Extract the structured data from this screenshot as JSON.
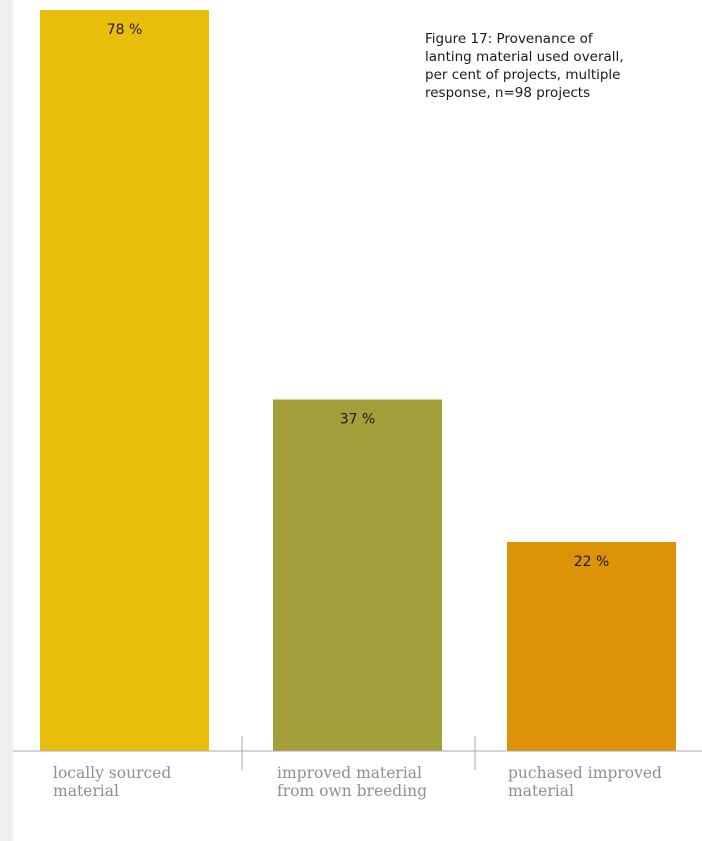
{
  "figure": {
    "title_lines": [
      "Figure 17: Provenance of",
      "lanting material used overall,",
      "per cent of projects, multiple",
      "response, n=98 projects"
    ]
  },
  "chart_data": {
    "type": "bar",
    "title": "Figure 17: Provenance of lanting material used overall, per cent of projects, multiple response, n=98 projects",
    "categories": [
      [
        "locally sourced",
        "material"
      ],
      [
        "improved material",
        "from own breeding"
      ],
      [
        "puchased improved",
        "material"
      ]
    ],
    "values": [
      78,
      37,
      22
    ],
    "value_labels": [
      "78 %",
      "37 %",
      "22 %"
    ],
    "colors": [
      "#e9be0b",
      "#a39f3a",
      "#dc9307"
    ],
    "ylim": [
      0,
      80
    ],
    "grid": false,
    "legend": "none"
  }
}
